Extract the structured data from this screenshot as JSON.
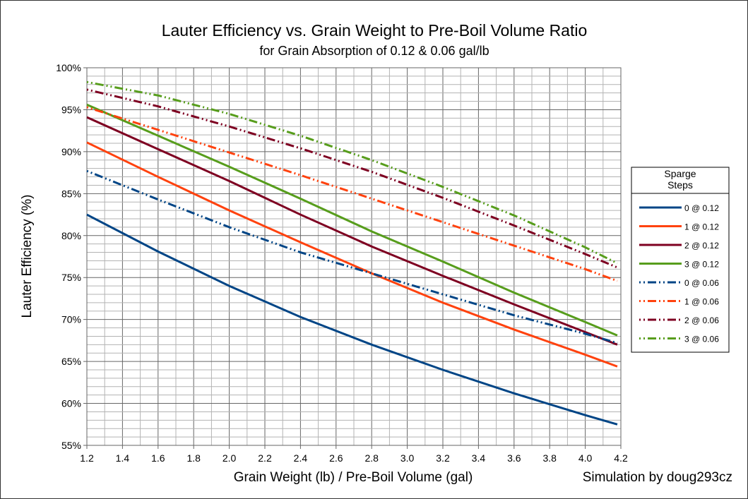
{
  "chart_data": {
    "type": "line",
    "title": "Lauter Efficiency vs. Grain Weight to Pre-Boil Volume Ratio",
    "subtitle": "for Grain Absorption of 0.12 & 0.06 gal/lb",
    "xlabel": "Grain Weight (lb) / Pre-Boil Volume (gal)",
    "ylabel": "Lauter Efficiency (%)",
    "credit": "Simulation by doug293cz",
    "xlim": [
      1.2,
      4.2
    ],
    "ylim": [
      55,
      100
    ],
    "xticks": [
      "1.2",
      "1.4",
      "1.6",
      "1.8",
      "2.0",
      "2.2",
      "2.4",
      "2.6",
      "2.8",
      "3.0",
      "3.2",
      "3.4",
      "3.6",
      "3.8",
      "4.0",
      "4.2"
    ],
    "yticks": [
      "55%",
      "60%",
      "65%",
      "70%",
      "75%",
      "80%",
      "85%",
      "90%",
      "95%",
      "100%"
    ],
    "grid": true,
    "legend": {
      "title": "Sparge Steps",
      "position": "right"
    },
    "x": [
      1.2,
      1.6,
      2.0,
      2.4,
      2.8,
      3.2,
      3.6,
      4.0,
      4.18
    ],
    "series": [
      {
        "name": "0 @ 0.12",
        "color": "#004586",
        "style": "solid",
        "values": [
          82.5,
          78.1,
          74.0,
          70.3,
          67.0,
          64.0,
          61.2,
          58.6,
          57.5
        ]
      },
      {
        "name": "1 @ 0.12",
        "color": "#ff420e",
        "style": "solid",
        "values": [
          91.1,
          87.0,
          83.0,
          79.2,
          75.5,
          72.0,
          68.8,
          65.8,
          64.4
        ]
      },
      {
        "name": "2 @ 0.12",
        "color": "#7e0021",
        "style": "solid",
        "values": [
          94.1,
          90.3,
          86.5,
          82.5,
          78.7,
          75.2,
          71.8,
          68.5,
          67.0
        ]
      },
      {
        "name": "3 @ 0.12",
        "color": "#579d1c",
        "style": "solid",
        "values": [
          95.6,
          91.9,
          88.2,
          84.4,
          80.5,
          76.9,
          73.2,
          69.7,
          68.1
        ]
      },
      {
        "name": "0 @ 0.06",
        "color": "#004586",
        "style": "dash-dot-dot",
        "values": [
          87.7,
          84.3,
          81.0,
          78.0,
          75.5,
          73.0,
          70.5,
          68.3,
          67.2
        ]
      },
      {
        "name": "1 @ 0.06",
        "color": "#ff420e",
        "style": "dash-dot-dot",
        "values": [
          95.3,
          92.6,
          89.9,
          87.2,
          84.4,
          81.6,
          78.8,
          76.0,
          74.6
        ]
      },
      {
        "name": "2 @ 0.06",
        "color": "#7e0021",
        "style": "dash-dot-dot",
        "values": [
          97.4,
          95.4,
          93.0,
          90.4,
          87.6,
          84.5,
          81.2,
          77.8,
          76.2
        ]
      },
      {
        "name": "3 @ 0.06",
        "color": "#579d1c",
        "style": "dash-dot-dot",
        "values": [
          98.3,
          96.7,
          94.5,
          91.9,
          89.0,
          85.8,
          82.4,
          78.6,
          76.7
        ]
      }
    ]
  }
}
